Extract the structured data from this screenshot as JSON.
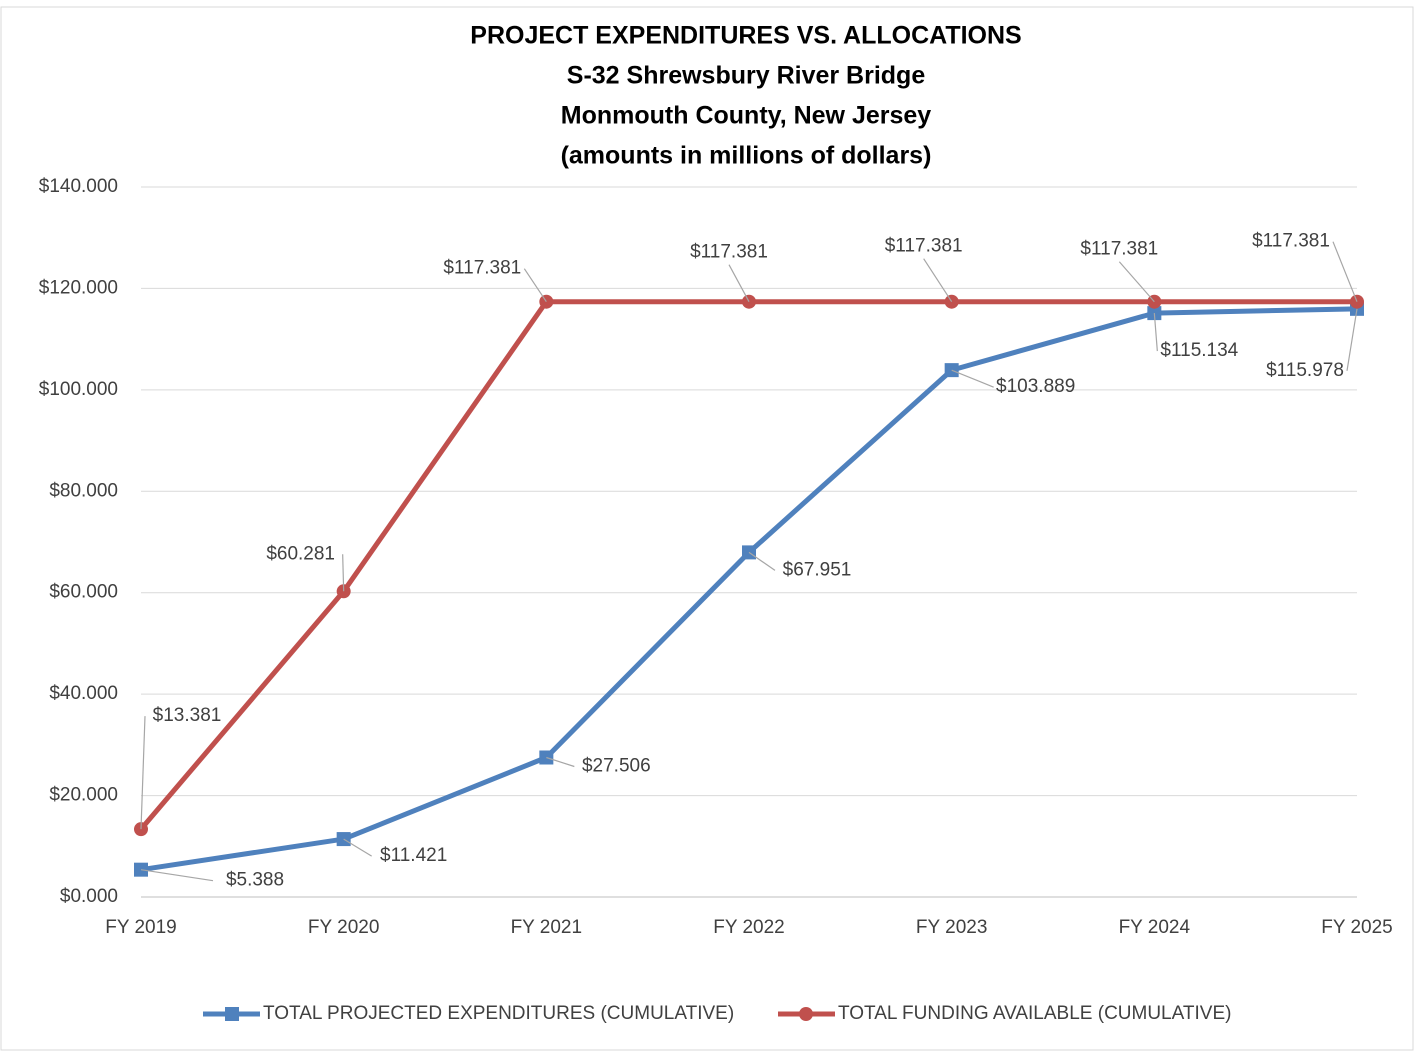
{
  "chart_data": {
    "type": "line",
    "title": [
      "PROJECT EXPENDITURES VS. ALLOCATIONS",
      "S-32 Shrewsbury River Bridge",
      "Monmouth County, New Jersey",
      "(amounts in millions of dollars)"
    ],
    "categories": [
      "FY 2019",
      "FY 2020",
      "FY 2021",
      "FY 2022",
      "FY 2023",
      "FY 2024",
      "FY 2025"
    ],
    "series": [
      {
        "name": "TOTAL PROJECTED EXPENDITURES (CUMULATIVE)",
        "color": "#4f81bd",
        "marker": "square",
        "values": [
          5.388,
          11.421,
          27.506,
          67.951,
          103.889,
          115.134,
          115.978
        ],
        "value_labels": [
          "$5.388",
          "$11.421",
          "$27.506",
          "$67.951",
          "$103.889",
          "$115.134",
          "$115.978"
        ]
      },
      {
        "name": "TOTAL FUNDING AVAILABLE (CUMULATIVE)",
        "color": "#c0504d",
        "marker": "circle",
        "values": [
          13.381,
          60.281,
          117.381,
          117.381,
          117.381,
          117.381,
          117.381
        ],
        "value_labels": [
          "$13.381",
          "$60.281",
          "$117.381",
          "$117.381",
          "$117.381",
          "$117.381",
          "$117.381"
        ]
      }
    ],
    "ylim": [
      0,
      140
    ],
    "yticks": [
      {
        "value": 0,
        "label": "$0.000"
      },
      {
        "value": 20,
        "label": "$20.000"
      },
      {
        "value": 40,
        "label": "$40.000"
      },
      {
        "value": 60,
        "label": "$60.000"
      },
      {
        "value": 80,
        "label": "$80.000"
      },
      {
        "value": 100,
        "label": "$100.000"
      },
      {
        "value": 120,
        "label": "$120.000"
      },
      {
        "value": 140,
        "label": "$140.000"
      }
    ],
    "grid": true,
    "legend": "bottom"
  }
}
